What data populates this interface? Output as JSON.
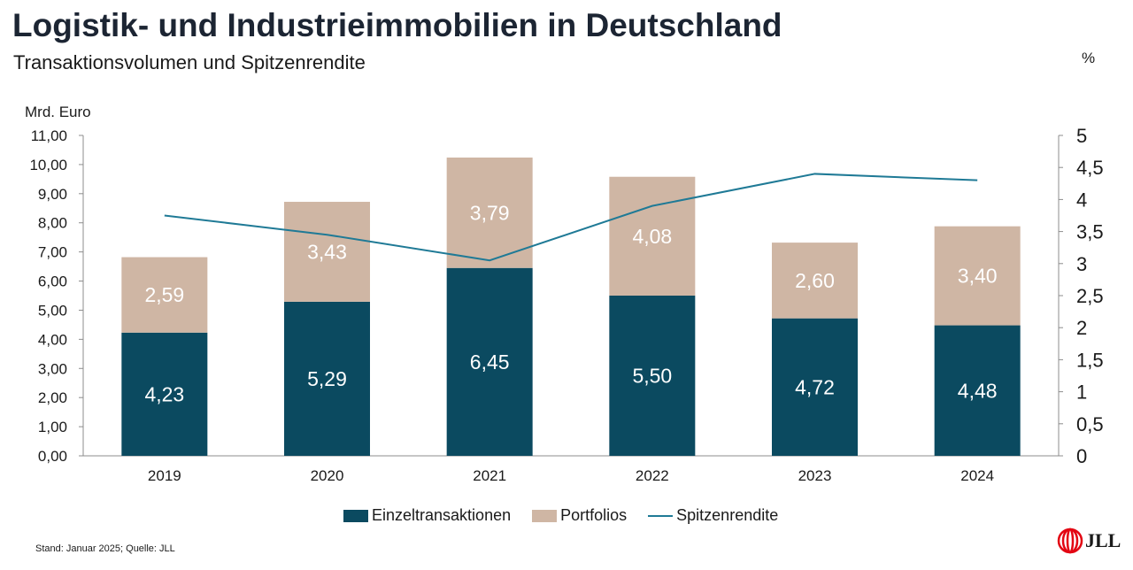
{
  "header": {
    "title": "Logistik- und Industrieimmobilien in Deutschland",
    "subtitle": "Transaktionsvolumen und Spitzenrendite"
  },
  "axes": {
    "left_unit": "Mrd. Euro",
    "right_unit": "%"
  },
  "legend": {
    "items": [
      "Einzeltransaktionen",
      "Portfolios",
      "Spitzenrendite"
    ]
  },
  "footer": {
    "source": "Stand: Januar 2025; Quelle: JLL"
  },
  "logo": {
    "text": "JLL"
  },
  "colors": {
    "einzel": "#0b4a60",
    "portfolio": "#cfb6a4",
    "line": "#1f7a96",
    "axis": "#8c8c8c",
    "logo_red": "#e30613"
  },
  "chart_data": {
    "type": "bar",
    "stacked": true,
    "categories": [
      "2019",
      "2020",
      "2021",
      "2022",
      "2023",
      "2024"
    ],
    "series": [
      {
        "name": "Einzeltransaktionen",
        "values": [
          4.23,
          5.29,
          6.45,
          5.5,
          4.72,
          4.48
        ],
        "labels": [
          "4,23",
          "5,29",
          "6,45",
          "5,50",
          "4,72",
          "4,48"
        ]
      },
      {
        "name": "Portfolios",
        "values": [
          2.59,
          3.43,
          3.79,
          4.08,
          2.6,
          3.4
        ],
        "labels": [
          "2,59",
          "3,43",
          "3,79",
          "4,08",
          "2,60",
          "3,40"
        ]
      }
    ],
    "line_series": {
      "name": "Spitzenrendite",
      "axis": "right",
      "values": [
        3.75,
        3.45,
        3.05,
        3.9,
        4.4,
        4.3
      ]
    },
    "ylim": [
      0,
      11
    ],
    "y_ticks": [
      "0,00",
      "1,00",
      "2,00",
      "3,00",
      "4,00",
      "5,00",
      "6,00",
      "7,00",
      "8,00",
      "9,00",
      "10,00",
      "11,00"
    ],
    "y2lim": [
      0,
      5
    ],
    "y2_ticks": [
      "0",
      "0,5",
      "1",
      "1,5",
      "2",
      "2,5",
      "3",
      "3,5",
      "4",
      "4,5",
      "5"
    ],
    "grid": false,
    "legend_position": "bottom"
  }
}
